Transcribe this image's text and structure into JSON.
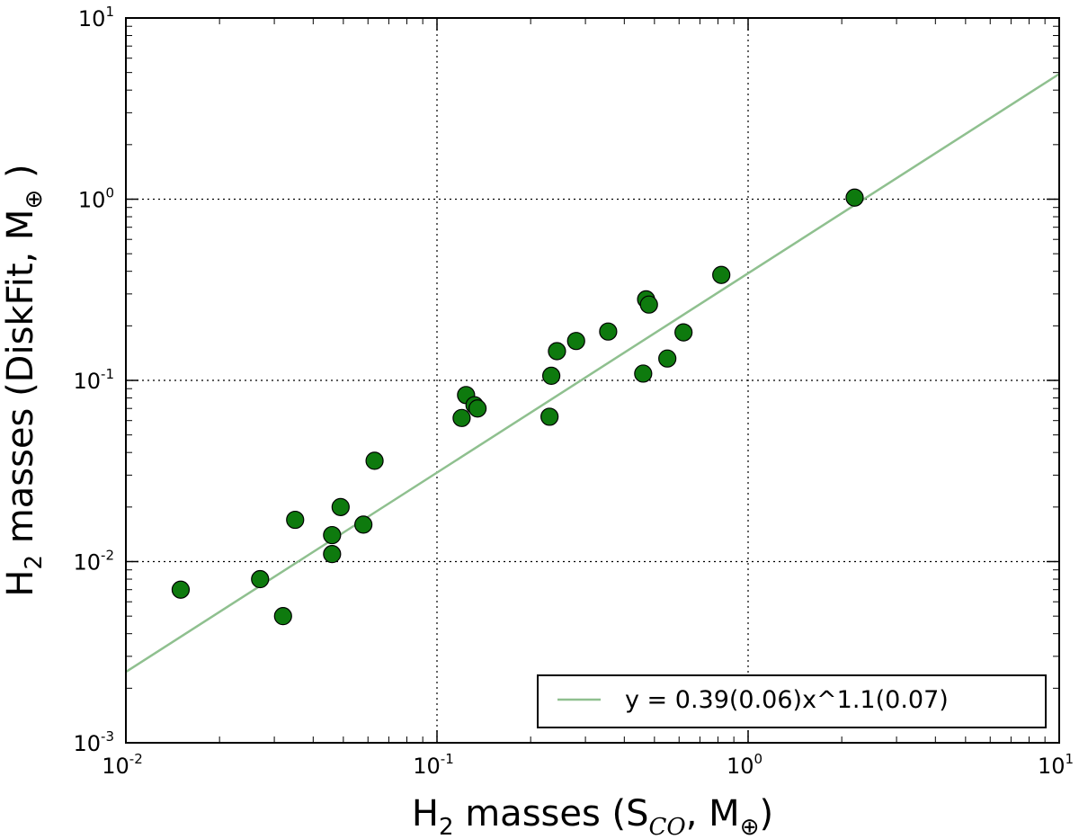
{
  "chart_data": {
    "type": "scatter",
    "xscale": "log",
    "yscale": "log",
    "xlim": [
      0.01,
      10
    ],
    "ylim": [
      0.001,
      10
    ],
    "grid": true,
    "xlabel": {
      "main": "H",
      "sub": "2",
      "rest": " masses (S",
      "sub2": "CO",
      "rest2": ", M",
      "sub3": "⊕",
      "end": ")"
    },
    "ylabel": {
      "main": "H",
      "sub": "2",
      "rest": " masses (DiskFit, M",
      "sub3": "⊕",
      "end": " )"
    },
    "xticks": [
      {
        "value": 0.01,
        "base": "10",
        "exp": "-2"
      },
      {
        "value": 0.1,
        "base": "10",
        "exp": "-1"
      },
      {
        "value": 1,
        "base": "10",
        "exp": "0"
      },
      {
        "value": 10,
        "base": "10",
        "exp": "1"
      }
    ],
    "yticks": [
      {
        "value": 0.001,
        "base": "10",
        "exp": "-3"
      },
      {
        "value": 0.01,
        "base": "10",
        "exp": "-2"
      },
      {
        "value": 0.1,
        "base": "10",
        "exp": "-1"
      },
      {
        "value": 1,
        "base": "10",
        "exp": "0"
      },
      {
        "value": 10,
        "base": "10",
        "exp": "1"
      }
    ],
    "points": [
      {
        "x": 0.015,
        "y": 0.007
      },
      {
        "x": 0.027,
        "y": 0.008
      },
      {
        "x": 0.032,
        "y": 0.005
      },
      {
        "x": 0.035,
        "y": 0.017
      },
      {
        "x": 0.046,
        "y": 0.014
      },
      {
        "x": 0.046,
        "y": 0.011
      },
      {
        "x": 0.049,
        "y": 0.02
      },
      {
        "x": 0.058,
        "y": 0.016
      },
      {
        "x": 0.063,
        "y": 0.036
      },
      {
        "x": 0.12,
        "y": 0.062
      },
      {
        "x": 0.124,
        "y": 0.083
      },
      {
        "x": 0.132,
        "y": 0.073
      },
      {
        "x": 0.135,
        "y": 0.07
      },
      {
        "x": 0.23,
        "y": 0.063
      },
      {
        "x": 0.233,
        "y": 0.106
      },
      {
        "x": 0.243,
        "y": 0.145
      },
      {
        "x": 0.28,
        "y": 0.165
      },
      {
        "x": 0.355,
        "y": 0.186
      },
      {
        "x": 0.46,
        "y": 0.109
      },
      {
        "x": 0.47,
        "y": 0.28
      },
      {
        "x": 0.48,
        "y": 0.262
      },
      {
        "x": 0.55,
        "y": 0.132
      },
      {
        "x": 0.62,
        "y": 0.184
      },
      {
        "x": 0.82,
        "y": 0.382
      },
      {
        "x": 2.2,
        "y": 1.02
      }
    ],
    "fit": {
      "a": 0.39,
      "b": 1.1,
      "label": "y = 0.39(0.06)x^1.1(0.07)"
    },
    "colors": {
      "marker": "#0e7a0e",
      "marker_edge": "#000000",
      "fit_line": "#8fc08f",
      "grid": "#000000"
    }
  }
}
